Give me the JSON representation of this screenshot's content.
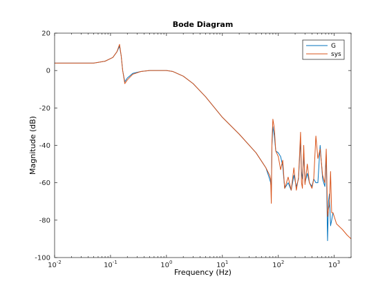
{
  "chart_data": {
    "type": "line",
    "title": "Bode Diagram",
    "xlabel": "Frequency  (Hz)",
    "ylabel": "Magnitude (dB)",
    "x_scale": "log",
    "xlim": [
      0.01,
      2000
    ],
    "ylim": [
      -100,
      20
    ],
    "x_ticks": [
      {
        "value": 0.01,
        "base": "10",
        "exp": "-2"
      },
      {
        "value": 0.1,
        "base": "10",
        "exp": "-1"
      },
      {
        "value": 1,
        "base": "10",
        "exp": "0"
      },
      {
        "value": 10,
        "base": "10",
        "exp": "1"
      },
      {
        "value": 100,
        "base": "10",
        "exp": "2"
      },
      {
        "value": 1000,
        "base": "10",
        "exp": "3"
      }
    ],
    "y_ticks": [
      "-100",
      "-80",
      "-60",
      "-40",
      "-20",
      "0",
      "20"
    ],
    "grid": false,
    "legend_position": "top-right",
    "series": [
      {
        "name": "G",
        "color": "#0072BD",
        "x": [
          0.01,
          0.05,
          0.08,
          0.11,
          0.13,
          0.145,
          0.155,
          0.165,
          0.18,
          0.2,
          0.25,
          0.35,
          0.5,
          0.8,
          1,
          1.3,
          2,
          3,
          5,
          10,
          20,
          40,
          60,
          70,
          73,
          75,
          77,
          80,
          85,
          90,
          100,
          110,
          120,
          130,
          150,
          170,
          190,
          210,
          230,
          250,
          260,
          270,
          285,
          300,
          330,
          360,
          400,
          430,
          470,
          510,
          560,
          620,
          680,
          720,
          760,
          790,
          820,
          860,
          900,
          950
        ],
        "y": [
          4,
          4,
          5,
          7,
          10,
          13,
          8,
          0,
          -6,
          -4,
          -1.5,
          -0.5,
          0,
          0,
          0,
          -0.5,
          -3,
          -7,
          -14,
          -25,
          -34,
          -44,
          -52,
          -58,
          -60,
          -64,
          -40,
          -30,
          -35,
          -43,
          -44,
          -46,
          -51,
          -63,
          -60,
          -64,
          -56,
          -62,
          -58,
          -37,
          -54,
          -58,
          -44,
          -60,
          -55,
          -60,
          -62,
          -58,
          -60,
          -60,
          -40,
          -58,
          -62,
          -45,
          -91,
          -70,
          -66,
          -83,
          -80,
          -76
        ]
      },
      {
        "name": "sys",
        "color": "#D95319",
        "x": [
          0.01,
          0.05,
          0.08,
          0.11,
          0.13,
          0.145,
          0.155,
          0.165,
          0.18,
          0.2,
          0.25,
          0.35,
          0.5,
          0.8,
          1,
          1.3,
          2,
          3,
          5,
          10,
          20,
          40,
          60,
          70,
          73,
          75,
          77,
          80,
          85,
          90,
          100,
          110,
          120,
          130,
          150,
          170,
          190,
          210,
          230,
          250,
          260,
          270,
          285,
          300,
          330,
          360,
          400,
          430,
          470,
          510,
          560,
          620,
          680,
          720,
          760,
          790,
          820,
          860,
          900,
          950,
          1100,
          1400,
          1700,
          2000
        ],
        "y": [
          4,
          4,
          5,
          7,
          10,
          14,
          8,
          0,
          -7,
          -5,
          -2,
          -0.5,
          0,
          0,
          0,
          -0.5,
          -3,
          -7,
          -14,
          -25,
          -34,
          -44,
          -52,
          -56,
          -58,
          -71,
          -38,
          -26,
          -31,
          -43,
          -46,
          -53,
          -48,
          -63,
          -57,
          -64,
          -52,
          -64,
          -57,
          -33,
          -60,
          -63,
          -40,
          -61,
          -50,
          -60,
          -63,
          -58,
          -35,
          -47,
          -42,
          -56,
          -60,
          -42,
          -78,
          -74,
          -72,
          -54,
          -76,
          -76,
          -82,
          -85,
          -88,
          -90
        ]
      }
    ]
  }
}
